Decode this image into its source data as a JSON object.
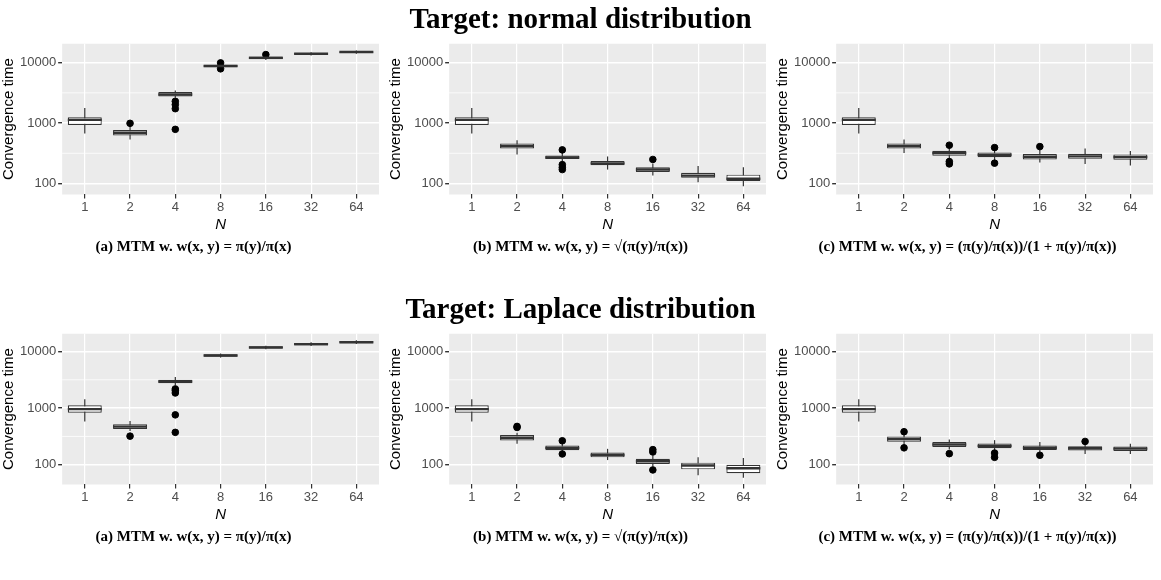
{
  "chart_data": [
    {
      "type": "box",
      "annotations": [
        "(a) MTM w. w(x, y) = π(y)/π(x)"
      ],
      "xlabel": "N",
      "ylabel": "Convergence time",
      "categories": [
        "1",
        "2",
        "4",
        "8",
        "16",
        "32",
        "64"
      ],
      "log": true,
      "grid": true,
      "ylim": [
        66,
        20500
      ],
      "yticks": [
        100,
        1000,
        10000
      ],
      "boxes": [
        {
          "low": 675,
          "q1": 930,
          "median": 1130,
          "q3": 1250,
          "high": 1775
        },
        {
          "low": 535,
          "q1": 625,
          "median": 690,
          "q3": 770,
          "high": 870,
          "outliers": [
            990
          ]
        },
        {
          "low": 2620,
          "q1": 2750,
          "median": 2970,
          "q3": 3260,
          "high": 3470,
          "outliers": [
            2290,
            2020,
            1730,
            787
          ]
        },
        {
          "low": 8200,
          "q1": 8360,
          "median": 8790,
          "q3": 9250,
          "high": 9400,
          "outliers": [
            9900,
            7900
          ]
        },
        {
          "low": 11100,
          "q1": 11380,
          "median": 12000,
          "q3": 12600,
          "high": 13100,
          "outliers": [
            13600
          ]
        },
        {
          "low": 13100,
          "q1": 13450,
          "median": 14000,
          "q3": 14500,
          "high": 14900
        },
        {
          "low": 14000,
          "q1": 14500,
          "median": 15000,
          "q3": 15500,
          "high": 15900
        }
      ]
    },
    {
      "type": "box",
      "title": "Target: normal distribution",
      "annotations": [
        "(b) MTM w. w(x, y) = √(π(y)/π(x))"
      ],
      "xlabel": "N",
      "ylabel": "Convergence time",
      "categories": [
        "1",
        "2",
        "4",
        "8",
        "16",
        "32",
        "64"
      ],
      "log": true,
      "grid": true,
      "ylim": [
        66,
        20500
      ],
      "yticks": [
        100,
        1000,
        10000
      ],
      "boxes": [
        {
          "low": 675,
          "q1": 930,
          "median": 1130,
          "q3": 1250,
          "high": 1775
        },
        {
          "low": 303,
          "q1": 378,
          "median": 413,
          "q3": 458,
          "high": 521
        },
        {
          "low": 225,
          "q1": 255,
          "median": 270,
          "q3": 290,
          "high": 330,
          "outliers": [
            360,
            205,
            185,
            170
          ]
        },
        {
          "low": 170,
          "q1": 200,
          "median": 215,
          "q3": 235,
          "high": 280
        },
        {
          "low": 135,
          "q1": 155,
          "median": 170,
          "q3": 185,
          "high": 215,
          "outliers": [
            250
          ]
        },
        {
          "low": 105,
          "q1": 125,
          "median": 135,
          "q3": 150,
          "high": 195
        },
        {
          "low": 90,
          "q1": 110,
          "median": 120,
          "q3": 140,
          "high": 185
        }
      ]
    },
    {
      "type": "box",
      "annotations": [
        "(c) MTM w. w(x, y) = (π(y)/π(x))/(1 + π(y)/π(x))"
      ],
      "xlabel": "N",
      "ylabel": "Convergence time",
      "categories": [
        "1",
        "2",
        "4",
        "8",
        "16",
        "32",
        "64"
      ],
      "log": true,
      "grid": true,
      "ylim": [
        66,
        20500
      ],
      "yticks": [
        100,
        1000,
        10000
      ],
      "boxes": [
        {
          "low": 675,
          "q1": 930,
          "median": 1130,
          "q3": 1250,
          "high": 1775
        },
        {
          "low": 319,
          "q1": 378,
          "median": 413,
          "q3": 458,
          "high": 535
        },
        {
          "low": 250,
          "q1": 288,
          "median": 319,
          "q3": 349,
          "high": 390,
          "outliers": [
            430,
            231,
            211
          ]
        },
        {
          "low": 245,
          "q1": 273,
          "median": 299,
          "q3": 327,
          "high": 360,
          "outliers": [
            393,
            217
          ]
        },
        {
          "low": 222,
          "q1": 250,
          "median": 277,
          "q3": 307,
          "high": 360,
          "outliers": [
            408
          ]
        },
        {
          "low": 211,
          "q1": 256,
          "median": 281,
          "q3": 311,
          "high": 378
        },
        {
          "low": 198,
          "q1": 247,
          "median": 274,
          "q3": 303,
          "high": 345
        }
      ]
    },
    {
      "type": "box",
      "annotations": [
        "(a) MTM w. w(x, y) = π(y)/π(x)"
      ],
      "xlabel": "N",
      "ylabel": "Convergence time",
      "categories": [
        "1",
        "2",
        "4",
        "8",
        "16",
        "32",
        "64"
      ],
      "log": true,
      "grid": true,
      "ylim": [
        45,
        20500
      ],
      "yticks": [
        100,
        1000,
        10000
      ],
      "boxes": [
        {
          "low": 578,
          "q1": 826,
          "median": 960,
          "q3": 1120,
          "high": 1430
        },
        {
          "low": 394,
          "q1": 428,
          "median": 471,
          "q3": 518,
          "high": 595,
          "outliers": [
            320
          ]
        },
        {
          "low": 2510,
          "q1": 2760,
          "median": 2950,
          "q3": 3160,
          "high": 3530,
          "outliers": [
            2180,
            2040,
            1850,
            760,
            373
          ]
        },
        {
          "low": 7800,
          "q1": 8030,
          "median": 8490,
          "q3": 8960,
          "high": 9200
        },
        {
          "low": 10900,
          "q1": 11150,
          "median": 11800,
          "q3": 12300,
          "high": 12600
        },
        {
          "low": 12500,
          "q1": 12800,
          "median": 13500,
          "q3": 14100,
          "high": 14500
        },
        {
          "low": 13500,
          "q1": 13900,
          "median": 14500,
          "q3": 15300,
          "high": 15700
        }
      ]
    },
    {
      "type": "box",
      "title": "Target: Laplace distribution",
      "annotations": [
        "(b) MTM w. w(x, y) = √(π(y)/π(x))"
      ],
      "xlabel": "N",
      "ylabel": "Convergence time",
      "categories": [
        "1",
        "2",
        "4",
        "8",
        "16",
        "32",
        "64"
      ],
      "log": true,
      "grid": true,
      "ylim": [
        45,
        20500
      ],
      "yticks": [
        100,
        1000,
        10000
      ],
      "boxes": [
        {
          "low": 578,
          "q1": 826,
          "median": 960,
          "q3": 1120,
          "high": 1430
        },
        {
          "low": 234,
          "q1": 268,
          "median": 299,
          "q3": 334,
          "high": 367,
          "outliers": [
            475,
            455
          ]
        },
        {
          "low": 173,
          "q1": 180,
          "median": 199,
          "q3": 218,
          "high": 240,
          "outliers": [
            265,
            155
          ]
        },
        {
          "low": 121,
          "q1": 135,
          "median": 149,
          "q3": 164,
          "high": 191
        },
        {
          "low": 93,
          "q1": 103,
          "median": 115,
          "q3": 128,
          "high": 145,
          "outliers": [
            185,
            168,
            81
          ]
        },
        {
          "low": 65,
          "q1": 83,
          "median": 97,
          "q3": 109,
          "high": 135
        },
        {
          "low": 59,
          "q1": 71,
          "median": 87,
          "q3": 100,
          "high": 131
        }
      ]
    },
    {
      "type": "box",
      "annotations": [
        "(c) MTM w. w(x, y) = (π(y)/π(x))/(1 + π(y)/π(x))"
      ],
      "xlabel": "N",
      "ylabel": "Convergence time",
      "categories": [
        "1",
        "2",
        "4",
        "8",
        "16",
        "32",
        "64"
      ],
      "log": true,
      "grid": true,
      "ylim": [
        45,
        20500
      ],
      "yticks": [
        100,
        1000,
        10000
      ],
      "boxes": [
        {
          "low": 578,
          "q1": 826,
          "median": 960,
          "q3": 1120,
          "high": 1430
        },
        {
          "low": 225,
          "q1": 254,
          "median": 283,
          "q3": 316,
          "high": 350,
          "outliers": [
            383,
            199
          ]
        },
        {
          "low": 185,
          "q1": 206,
          "median": 228,
          "q3": 251,
          "high": 279,
          "outliers": [
            157
          ]
        },
        {
          "low": 173,
          "q1": 196,
          "median": 215,
          "q3": 237,
          "high": 272,
          "outliers": [
            161,
            135
          ]
        },
        {
          "low": 168,
          "q1": 183,
          "median": 199,
          "q3": 218,
          "high": 251,
          "outliers": [
            147
          ]
        },
        {
          "low": 155,
          "q1": 178,
          "median": 196,
          "q3": 212,
          "high": 234,
          "outliers": [
            258
          ]
        },
        {
          "low": 155,
          "q1": 175,
          "median": 193,
          "q3": 209,
          "high": 234
        }
      ]
    }
  ]
}
